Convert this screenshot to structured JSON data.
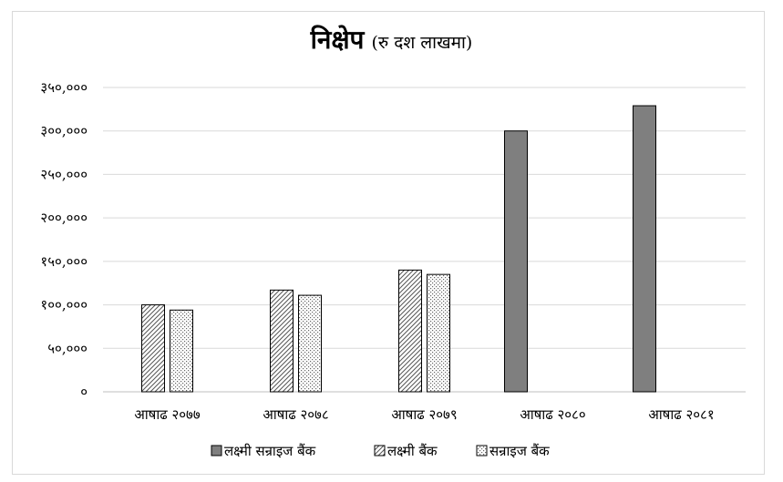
{
  "chart_data": {
    "type": "bar",
    "title": "निक्षेप",
    "subtitle": "(रु दश लाखमा)",
    "categories": [
      "आषाढ २०७७",
      "आषाढ २०७८",
      "आषाढ २०७९",
      "आषाढ २०८०",
      "आषाढ २०८१"
    ],
    "series": [
      {
        "name": "लक्ष्मी सन्राइज बैंक",
        "values": [
          null,
          null,
          null,
          300000,
          329000
        ],
        "color": "#7f7f7f",
        "pattern": "solid"
      },
      {
        "name": "लक्ष्मी बैंक",
        "values": [
          100000,
          117000,
          140000,
          null,
          null
        ],
        "color": "#ffffff",
        "pattern": "diagonal"
      },
      {
        "name": "सन्राइज बैंक",
        "values": [
          94000,
          111000,
          135000,
          null,
          null
        ],
        "color": "#ffffff",
        "pattern": "dots"
      }
    ],
    "y_ticks": [
      "०",
      "५०,०००",
      "१००,०००",
      "१५०,०००",
      "२००,०००",
      "२५०,०००",
      "३००,०००",
      "३५०,०००"
    ],
    "ylim": [
      0,
      350000
    ],
    "grid": true,
    "legend_position": "bottom"
  }
}
